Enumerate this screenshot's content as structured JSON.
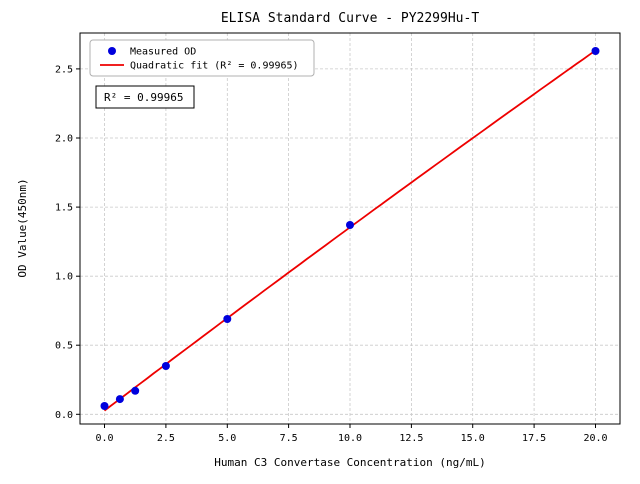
{
  "window": {
    "background": "#ffffff"
  },
  "chart_data": {
    "type": "scatter",
    "title": "ELISA Standard Curve - PY2299Hu-T",
    "xlabel": "Human C3 Convertase Concentration (ng/mL)",
    "ylabel": "OD Value(450nm)",
    "annotation": "R² = 0.99965",
    "r_squared": 0.99965,
    "xlim": [
      -1.0,
      21.0
    ],
    "ylim": [
      -0.07,
      2.76
    ],
    "xticks": [
      0.0,
      2.5,
      5.0,
      7.5,
      10.0,
      12.5,
      15.0,
      17.5,
      20.0
    ],
    "xtick_labels": [
      "0.0",
      "2.5",
      "5.0",
      "7.5",
      "10.0",
      "12.5",
      "15.0",
      "17.5",
      "20.0"
    ],
    "yticks": [
      0.0,
      0.5,
      1.0,
      1.5,
      2.0,
      2.5
    ],
    "ytick_labels": [
      "0.0",
      "0.5",
      "1.0",
      "1.5",
      "2.0",
      "2.5"
    ],
    "grid": true,
    "grid_color": "#c9c9c9",
    "frame_color": "#000000",
    "legend_position": "upper left",
    "series": [
      {
        "name": "Measured OD",
        "type": "scatter",
        "color": "#0000dd",
        "x": [
          0,
          0.625,
          1.25,
          2.5,
          5,
          10,
          20
        ],
        "y": [
          0.06,
          0.11,
          0.17,
          0.35,
          0.69,
          1.37,
          2.63
        ]
      },
      {
        "name": "Quadratic fit (R² = 0.99965)",
        "type": "line",
        "fit": "quadratic",
        "color": "#ee0000"
      }
    ]
  }
}
